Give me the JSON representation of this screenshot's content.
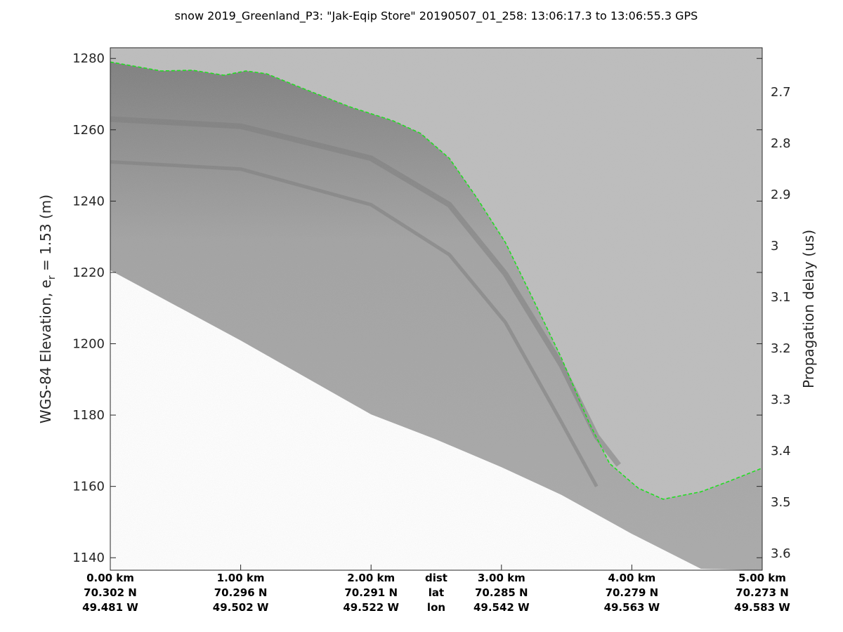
{
  "chart_data": {
    "type": "heatmap",
    "title": "snow 2019_Greenland_P3: \"Jak-Eqip Store\"  20190507_01_258: 13:06:17.3 to 13:06:55.3 GPS",
    "ylabel_left_main": "WGS-84 Elevation, e",
    "ylabel_left_sub": "r",
    "ylabel_left_tail": " = 1.53 (m)",
    "ylabel_right": "Propagation delay (us)",
    "xlim_km": [
      0,
      5
    ],
    "ylim_left": [
      1136.5,
      1283
    ],
    "y_ticks_left": [
      "1140",
      "1160",
      "1180",
      "1200",
      "1220",
      "1240",
      "1260",
      "1280"
    ],
    "y_ticks_right": [
      "2.7",
      "2.8",
      "2.9",
      "3",
      "3.1",
      "3.2",
      "3.3",
      "3.4",
      "3.5",
      "3.6"
    ],
    "right_axis_anchor": {
      "delay_at_top_tick": 2.7,
      "delay_at_bottom_tick": 3.6
    },
    "x_labels": [
      {
        "dist": "0.00 km",
        "lat": "70.302 N",
        "lon": "49.481 W",
        "km": 0
      },
      {
        "dist": "1.00 km",
        "lat": "70.296 N",
        "lon": "49.502 W",
        "km": 1
      },
      {
        "dist": "2.00 km",
        "lat": "70.291 N",
        "lon": "49.522 W",
        "km": 2
      },
      {
        "dist": "3.00 km",
        "lat": "70.285 N",
        "lon": "49.542 W",
        "km": 3
      },
      {
        "dist": "4.00 km",
        "lat": "70.279 N",
        "lon": "49.563 W",
        "km": 4
      },
      {
        "dist": "5.00 km",
        "lat": "70.273 N",
        "lon": "49.583 W",
        "km": 5
      }
    ],
    "x_row_labels": {
      "dist": "dist",
      "lat": "lat",
      "lon": "lon"
    },
    "colormap": "gray",
    "surface_color": "#22dd22",
    "surface": [
      [
        0,
        1279
      ],
      [
        0.39,
        1276.5
      ],
      [
        0.63,
        1276.7
      ],
      [
        0.87,
        1275.3
      ],
      [
        1.04,
        1276.5
      ],
      [
        1.2,
        1275.7
      ],
      [
        1.47,
        1271.7
      ],
      [
        1.84,
        1266.4
      ],
      [
        2.17,
        1262.5
      ],
      [
        2.38,
        1259
      ],
      [
        2.6,
        1252
      ],
      [
        2.81,
        1241
      ],
      [
        3.03,
        1228.4
      ],
      [
        3.24,
        1212.7
      ],
      [
        3.46,
        1196
      ],
      [
        3.67,
        1178
      ],
      [
        3.83,
        1166.4
      ],
      [
        4.05,
        1159.5
      ],
      [
        4.24,
        1156.4
      ],
      [
        4.53,
        1158.5
      ],
      [
        4.75,
        1161.5
      ],
      [
        4.99,
        1165
      ]
    ],
    "data_bottom": [
      [
        0,
        1220.6
      ],
      [
        1,
        1200.9
      ],
      [
        2,
        1180.2
      ],
      [
        2.49,
        1173.3
      ],
      [
        3,
        1165.4
      ],
      [
        3.46,
        1157.6
      ],
      [
        4,
        1146.7
      ],
      [
        4.53,
        1136.9
      ],
      [
        4.99,
        1136.5
      ]
    ],
    "internal_layers": [
      [
        [
          0,
          1263
        ],
        [
          1,
          1261
        ],
        [
          2,
          1252
        ],
        [
          2.6,
          1239
        ],
        [
          3.03,
          1219.6
        ],
        [
          3.46,
          1194
        ],
        [
          3.73,
          1174
        ],
        [
          3.9,
          1166
        ]
      ],
      [
        [
          0,
          1251
        ],
        [
          1,
          1249
        ],
        [
          2,
          1239
        ],
        [
          2.6,
          1225
        ],
        [
          3.03,
          1206
        ],
        [
          3.46,
          1178
        ],
        [
          3.73,
          1160
        ]
      ]
    ]
  }
}
